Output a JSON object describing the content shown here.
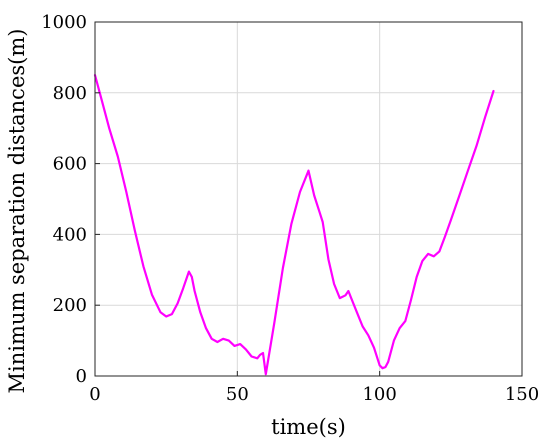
{
  "chart_data": {
    "type": "line",
    "title": "",
    "xlabel": "time(s)",
    "ylabel": "Minimum separation distances(m)",
    "xlim": [
      0,
      150
    ],
    "ylim": [
      0,
      1000
    ],
    "xticks": [
      0,
      50,
      100,
      150
    ],
    "yticks": [
      0,
      200,
      400,
      600,
      800,
      1000
    ],
    "grid": true,
    "colors": {
      "series": "#ff00ff",
      "grid": "#d9d9d9",
      "axis": "#262626"
    },
    "series": [
      {
        "name": "",
        "x": [
          0,
          2,
          5,
          8,
          11,
          14,
          17,
          20,
          23,
          25,
          27,
          29,
          31,
          33,
          34,
          35,
          37,
          39,
          41,
          43,
          45,
          47,
          49,
          51,
          53,
          55,
          57,
          58,
          59,
          60,
          63,
          66,
          69,
          72,
          75,
          77,
          79,
          80,
          82,
          84,
          86,
          88,
          89,
          90,
          92,
          94,
          96,
          98,
          100,
          101,
          102,
          103,
          105,
          107,
          109,
          111,
          113,
          115,
          117,
          119,
          121,
          123,
          125,
          128,
          131,
          134,
          137,
          140
        ],
        "y": [
          850,
          790,
          700,
          620,
          520,
          410,
          310,
          230,
          180,
          168,
          175,
          205,
          248,
          295,
          280,
          240,
          180,
          135,
          105,
          96,
          105,
          100,
          85,
          90,
          75,
          55,
          50,
          60,
          65,
          5,
          150,
          305,
          430,
          520,
          580,
          510,
          460,
          435,
          330,
          260,
          220,
          228,
          240,
          220,
          180,
          140,
          115,
          80,
          30,
          22,
          25,
          40,
          100,
          135,
          155,
          215,
          280,
          325,
          345,
          338,
          352,
          395,
          440,
          510,
          580,
          650,
          730,
          805
        ]
      }
    ]
  }
}
